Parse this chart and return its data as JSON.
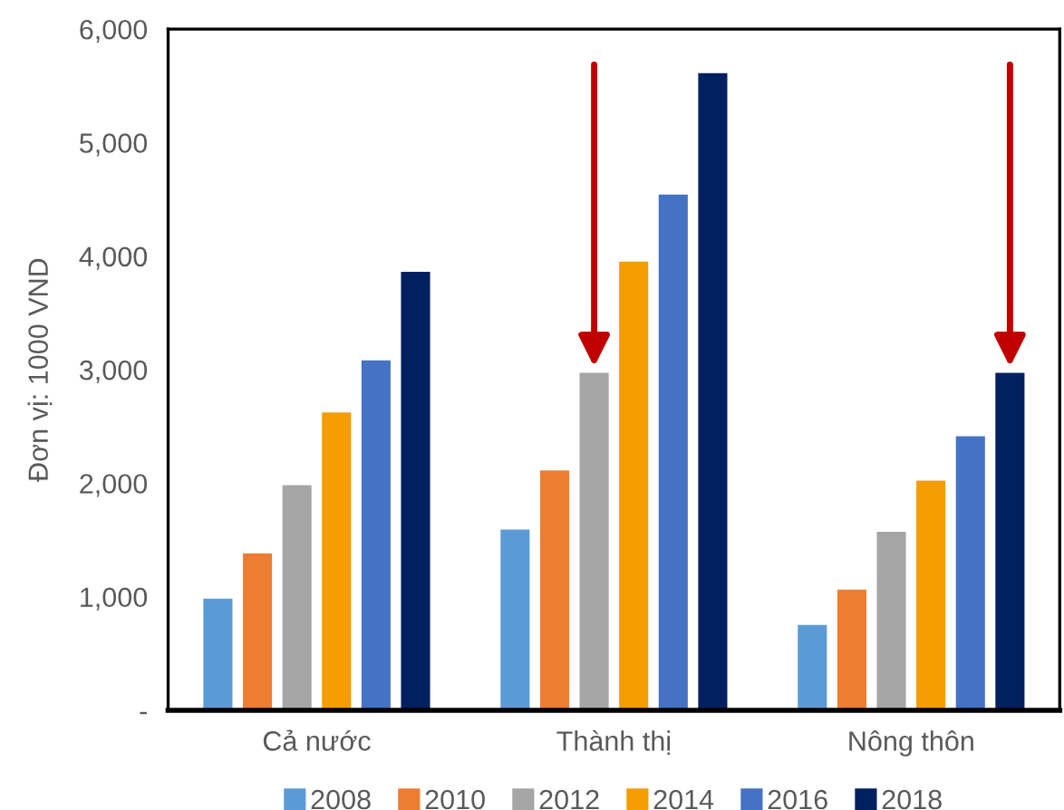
{
  "chart_data": {
    "type": "bar",
    "ylabel": "Đơn vị: 1000 VND",
    "categories": [
      "Cả nước",
      "Thành thị",
      "Nông thôn"
    ],
    "series": [
      {
        "name": "2008",
        "color": "#5b9bd5",
        "values": [
          990,
          1600,
          760
        ]
      },
      {
        "name": "2010",
        "color": "#ed7d31",
        "values": [
          1390,
          2120,
          1070
        ]
      },
      {
        "name": "2012",
        "color": "#a5a5a5",
        "values": [
          1990,
          2980,
          1580
        ]
      },
      {
        "name": "2014",
        "color": "#f59c00",
        "values": [
          2630,
          3960,
          2030
        ]
      },
      {
        "name": "2016",
        "color": "#4472c4",
        "values": [
          3090,
          4550,
          2420
        ]
      },
      {
        "name": "2018",
        "color": "#002060",
        "values": [
          3870,
          5620,
          2980
        ]
      }
    ],
    "ylim": [
      0,
      6000
    ],
    "yticks": [
      {
        "value": 0,
        "label": "-"
      },
      {
        "value": 1000,
        "label": "1,000"
      },
      {
        "value": 2000,
        "label": "2,000"
      },
      {
        "value": 3000,
        "label": "3,000"
      },
      {
        "value": 4000,
        "label": "4,000"
      },
      {
        "value": 5000,
        "label": "5,000"
      },
      {
        "value": 6000,
        "label": "6,000"
      }
    ],
    "grid": false,
    "legend": "bottom"
  }
}
